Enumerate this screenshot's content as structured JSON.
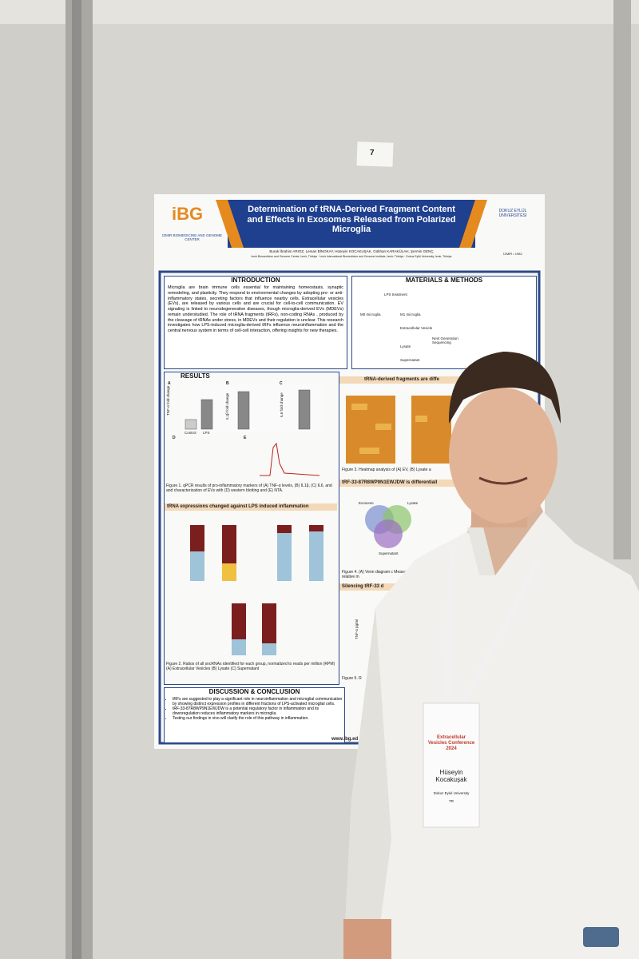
{
  "wall_sign": "7",
  "poster": {
    "header": {
      "logo_text": "iBG",
      "institute": "IZMIR BIOMEDICINE AND GENOME CENTER",
      "title": "Determination of tRNA-Derived Fragment Content and Effects in Exosomes Released from Polarized Microglia",
      "authors": "Burak İbrahim ARIOZ, Leman BİNOKAY, Hüseyin KOCAKUŞAK, Gökhan KARAKÜLAH, Şermin GENÇ",
      "affiliations": "İzmir Biomedicine and Genome Center, İzmir, Türkiye · İzmir International Biomedicine and Genome Institute, İzmir, Türkiye · Dokuz Eylül University, İzmir, Türkiye",
      "university": "DOKUZ EYLÜL ÜNİVERSİTESİ",
      "university_year": "İZMİR • 1982"
    },
    "introduction": {
      "heading": "INTRODUCTION",
      "text": "Microglia are brain immune cells essential for maintaining homeostasis, synaptic remodeling, and plasticity. They respond to environmental changes by adopting pro- or anti-inflammatory states, secreting factors that influence nearby cells. Extracellular vesicles (EVs), are released by various cells and are crucial for cell-to-cell communication. EV signaling is linked to neurodegenerative diseases, though microglia-derived EVs (MDEVs) remain understudied. The role of tRNA fragments (tRFs), non-coding RNAs , produced by the cleavage of tRNAs under stress, in MDEVs and their regulation is unclear. This research investigates how LPS-induced microglia-derived tRFs influence neuroinflammation and the central nervous system in terms of cell-cell interaction, offering insights for new therapies."
    },
    "methods": {
      "heading": "MATERIALS & METHODS",
      "labels": [
        "LPS treatment",
        "M0 microglia",
        "M1 microglia",
        "Extracellular Vesicle",
        "Lysate",
        "Supernatant",
        "Next Generation Sequencing"
      ]
    },
    "results": {
      "heading": "RESULTS",
      "panel_labels": [
        "A",
        "B",
        "C",
        "D",
        "E"
      ],
      "axis_labels": [
        "TNF-α fold change",
        "IL1β fold change",
        "IL6 fold change"
      ],
      "groups": [
        "Control",
        "LPS"
      ],
      "fig1_caption": "Figure 1. qPCR results of pro-inflammatory markers of (A) TNF-α levels, (B) IL1β, (C) IL6, and and characterization of EVs with (D) western blotting and (E) NTA.",
      "fig2_heading": "tRNA expressions changed against LPS induced inflammation",
      "fig2_caption": "Figure 2. Ratios of all sncRNAs identified for each group, normalized to reads per million (RPM) (A) Extracellular Vesicles (B) Lysate (C) Supernatant"
    },
    "right_column": {
      "fig3_heading": "tRNA-derived fragments are diffe",
      "fig3_caption": "Figure 3. Heatmap analysis of (A) EV, (B) Lysate a",
      "fig4_heading": "tRF-33-87R8WP9N1EWJDW is differentiall",
      "venn_labels": [
        "Exosome",
        "Lysate",
        "Supernatant"
      ],
      "fig4_caption": "Figure 4. (A) Venn diagram c Measurement of relative m",
      "fig5_heading": "Silencing tRF-33 d",
      "fig5_axis": "TNF-α pg/ml",
      "fig5_caption": "Figure 5. R"
    },
    "discussion": {
      "heading": "DISCUSSION & CONCLUSION",
      "bullets": [
        "tRFs are suggested to play a significant role in neuroinflammation and microglial communication by showing distinct expression profiles in different fractions of LPS-activated microglial cells.",
        "tRF-33-87R8WP9N1EWJDW is a potential regulatory factor in inflammation and its downregulation reduces inflammatory markers in microglia.",
        "Testing our findings in vivo will clarify the role of this pathway in inflammation."
      ]
    },
    "website": "www.ibg.ed"
  },
  "badge": {
    "event": "Extracellular Vesicles Conference 2024",
    "name": "Hüseyin Kocakuşak",
    "affiliation": "Dokuz Eylul University",
    "country": "TR"
  }
}
